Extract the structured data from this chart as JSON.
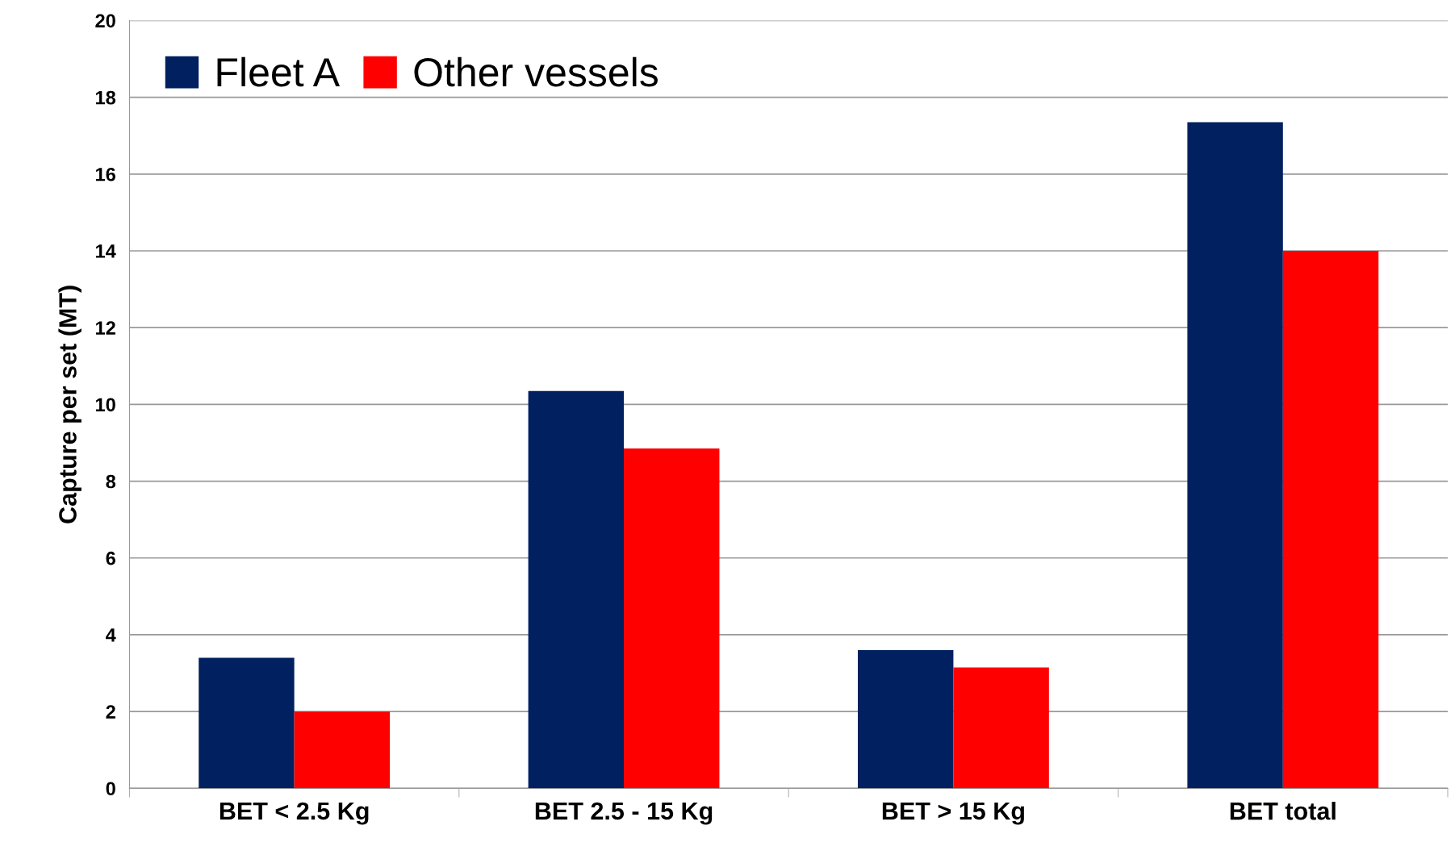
{
  "chart_data": {
    "type": "bar",
    "ylabel": "Capture per set (MT)",
    "categories": [
      "BET < 2.5 Kg",
      "BET 2.5 - 15 Kg",
      "BET > 15 Kg",
      "BET total"
    ],
    "series": [
      {
        "name": "Fleet A",
        "color": "#002060",
        "values": [
          3.4,
          10.35,
          3.6,
          17.35
        ]
      },
      {
        "name": "Other vessels",
        "color": "#ff0000",
        "values": [
          2.0,
          8.85,
          3.15,
          14.0
        ]
      }
    ],
    "ylim": [
      0,
      20
    ],
    "yticks": [
      0,
      2,
      4,
      6,
      8,
      10,
      12,
      14,
      16,
      18,
      20
    ],
    "grid": "y",
    "legend": "top left"
  }
}
